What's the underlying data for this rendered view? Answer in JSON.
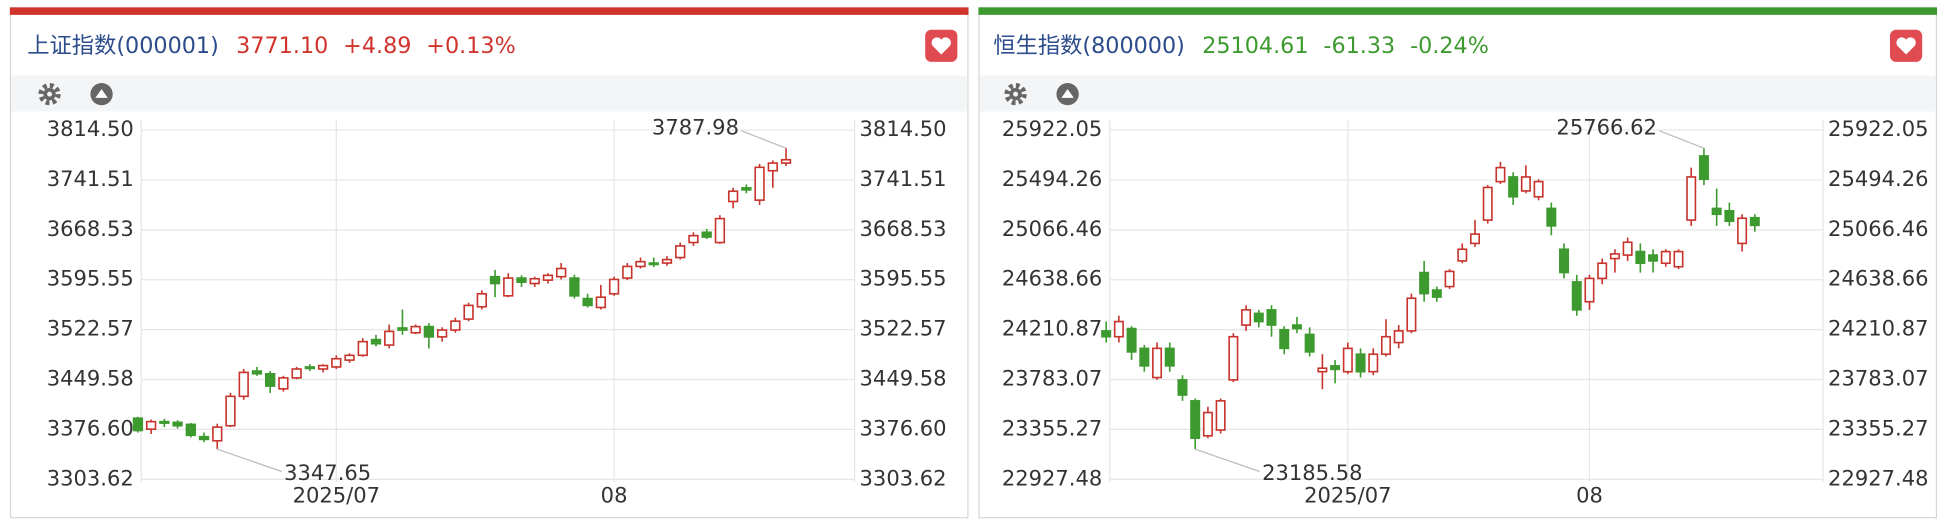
{
  "chart_data": [
    {
      "type": "candlestick",
      "title": "上证指数(000001)",
      "price": "3771.10",
      "change": "+4.89",
      "change_pct": "+0.13%",
      "color": "#d0342c",
      "up_color": "#c8332b",
      "down_color": "#3d9a2f",
      "categories": [
        null,
        null,
        null,
        null,
        null,
        null,
        null,
        null,
        null,
        null,
        null,
        null,
        null,
        null,
        null,
        "2025/07",
        null,
        null,
        null,
        null,
        null,
        null,
        null,
        null,
        null,
        null,
        null,
        null,
        null,
        null,
        null,
        null,
        null,
        null,
        null,
        null,
        "08",
        null,
        null,
        null,
        null,
        null,
        null,
        null,
        null,
        null,
        null,
        null,
        null,
        null
      ],
      "open": [
        3393,
        3377,
        3388,
        3387,
        3384,
        3366,
        3360,
        3382,
        3425,
        3462,
        3458,
        3436,
        3452,
        3468,
        3465,
        3468,
        3478,
        3485,
        3508,
        3500,
        3525,
        3518,
        3527,
        3512,
        3522,
        3538,
        3556,
        3600,
        3572,
        3598,
        3590,
        3595,
        3600,
        3598,
        3568,
        3555,
        3575,
        3598,
        3615,
        3620,
        3620,
        3628,
        3650,
        3665,
        3650,
        3710,
        3730,
        3712,
        3755,
        3766.21
      ],
      "high": [
        3395,
        3391,
        3392,
        3390,
        3386,
        3372,
        3385,
        3430,
        3465,
        3468,
        3462,
        3455,
        3468,
        3472,
        3472,
        3485,
        3488,
        3510,
        3515,
        3530,
        3552,
        3530,
        3532,
        3526,
        3540,
        3562,
        3580,
        3610,
        3605,
        3602,
        3600,
        3605,
        3620,
        3603,
        3575,
        3588,
        3600,
        3620,
        3628,
        3628,
        3630,
        3650,
        3665,
        3670,
        3690,
        3730,
        3735,
        3765,
        3770,
        3787.98
      ],
      "low": [
        3372,
        3370,
        3380,
        3378,
        3365,
        3358,
        3347.65,
        3380,
        3420,
        3455,
        3430,
        3432,
        3450,
        3462,
        3460,
        3465,
        3474,
        3483,
        3498,
        3495,
        3515,
        3516,
        3495,
        3505,
        3518,
        3535,
        3552,
        3570,
        3570,
        3585,
        3585,
        3590,
        3596,
        3568,
        3555,
        3552,
        3572,
        3595,
        3612,
        3614,
        3616,
        3625,
        3645,
        3655,
        3648,
        3700,
        3722,
        3705,
        3730,
        3762
      ],
      "close": [
        3375,
        3388,
        3386,
        3382,
        3368,
        3362,
        3380,
        3425,
        3460,
        3458,
        3440,
        3452,
        3465,
        3466,
        3470,
        3480,
        3485,
        3505,
        3502,
        3520,
        3522,
        3527,
        3512,
        3522,
        3535,
        3558,
        3575,
        3590,
        3598,
        3592,
        3597,
        3602,
        3612,
        3572,
        3558,
        3570,
        3596,
        3615,
        3622,
        3618,
        3625,
        3645,
        3660,
        3658,
        3685,
        3725,
        3727,
        3760,
        3766.21,
        3771.1
      ],
      "ylim": [
        3300,
        3829
      ],
      "yticks": [
        {
          "value": 3814.5,
          "label": "3814.50"
        },
        3741.51,
        3668.53,
        3595.55,
        3522.57,
        3449.58,
        {
          "value": 3376.6,
          "label": "3376.60"
        },
        3303.62
      ],
      "grid": true
    },
    {
      "type": "candlestick",
      "title": "恒生指数(800000)",
      "price": "25104.61",
      "change": "-61.33",
      "change_pct": "-0.24%",
      "color": "#3d9a2f",
      "up_color": "#c8332b",
      "down_color": "#3d9a2f",
      "categories": [
        null,
        null,
        null,
        null,
        null,
        null,
        null,
        null,
        null,
        null,
        null,
        null,
        null,
        null,
        null,
        null,
        null,
        null,
        null,
        "2025/07",
        null,
        null,
        null,
        null,
        null,
        null,
        null,
        null,
        null,
        null,
        null,
        null,
        null,
        null,
        null,
        null,
        null,
        null,
        "08",
        null,
        null,
        null,
        null,
        null,
        null,
        null,
        null,
        null,
        null,
        null,
        null,
        null
      ],
      "open": [
        24200,
        24150,
        24220,
        24050,
        23800,
        24050,
        23780,
        23600,
        23300,
        23350,
        23780,
        24250,
        24350,
        24380,
        24210,
        24250,
        24170,
        23850,
        23900,
        23850,
        24000,
        23850,
        24000,
        24100,
        24200,
        24700,
        24550,
        24580,
        24800,
        24950,
        25150,
        25480,
        25520,
        25400,
        25350,
        25250,
        24900,
        24620,
        24450,
        24650,
        24820,
        24850,
        24880,
        24850,
        24780,
        24750,
        25150,
        25700,
        25250,
        25230,
        24950,
        25170
      ],
      "high": [
        24280,
        24330,
        24240,
        24080,
        24100,
        24100,
        23820,
        23620,
        23550,
        23620,
        24180,
        24420,
        24380,
        24420,
        24240,
        24320,
        24230,
        24000,
        23950,
        24100,
        24050,
        24050,
        24300,
        24250,
        24520,
        24800,
        24580,
        24730,
        24950,
        25150,
        25450,
        25650,
        25560,
        25620,
        25500,
        25300,
        24950,
        24680,
        24680,
        24820,
        24900,
        25000,
        24950,
        24900,
        24900,
        24900,
        25600,
        25766.62,
        25420,
        25300,
        25200,
        25200
      ],
      "low": [
        24100,
        24100,
        23950,
        23850,
        23780,
        23850,
        23600,
        23185.58,
        23280,
        23320,
        23760,
        24200,
        24230,
        24150,
        24000,
        24180,
        23980,
        23700,
        23750,
        23830,
        23800,
        23820,
        23980,
        24050,
        24180,
        24450,
        24450,
        24560,
        24780,
        24920,
        25120,
        25460,
        25280,
        25380,
        25320,
        25020,
        24650,
        24330,
        24380,
        24600,
        24700,
        24800,
        24700,
        24700,
        24750,
        24730,
        25100,
        25450,
        25100,
        25100,
        24880,
        25050
      ],
      "close": [
        24150,
        24280,
        24020,
        23900,
        24050,
        23900,
        23650,
        23280,
        23500,
        23600,
        24150,
        24380,
        24280,
        24250,
        24050,
        24220,
        24020,
        23880,
        23870,
        24050,
        23850,
        24000,
        24150,
        24200,
        24480,
        24520,
        24490,
        24710,
        24900,
        25030,
        25430,
        25600,
        25350,
        25520,
        25480,
        25100,
        24700,
        24380,
        24650,
        24780,
        24860,
        24960,
        24780,
        24800,
        24880,
        24880,
        25520,
        25500,
        25200,
        25140,
        25165.94,
        25104.61
      ],
      "ylim": [
        22906,
        26007
      ],
      "yticks": [
        25922.05,
        25494.26,
        25066.46,
        24638.66,
        24210.87,
        23783.07,
        23355.27,
        22927.48
      ],
      "grid": true
    }
  ]
}
